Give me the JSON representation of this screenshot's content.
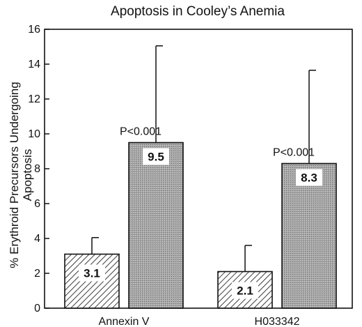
{
  "chart_data": {
    "type": "bar",
    "title": "Apoptosis in Cooley’s Anemia",
    "xlabel": "",
    "ylabel": "% Erythroid Precursors Undergoing Apoptosis",
    "ylabel_lines": [
      "% Erythroid Precursors Undergoing",
      "Apoptosis"
    ],
    "ylim": [
      0,
      16
    ],
    "yticks": [
      0,
      2,
      4,
      6,
      8,
      10,
      12,
      14,
      16
    ],
    "categories": [
      "Annexin V",
      "H033342"
    ],
    "series": [
      {
        "values": [
          3.1,
          2.1
        ],
        "errors": [
          0.95,
          1.5
        ],
        "labels": [
          "3.1",
          "2.1"
        ],
        "fill": "hatched",
        "color": "#ffffff"
      },
      {
        "values": [
          9.5,
          8.3
        ],
        "errors": [
          5.55,
          5.35
        ],
        "labels": [
          "9.5",
          "8.3"
        ],
        "fill": "stippled",
        "color": "#a8a8a8"
      }
    ],
    "annotations": [
      "P<0.001",
      "P<0.001"
    ],
    "grid": false,
    "legend": "none"
  }
}
